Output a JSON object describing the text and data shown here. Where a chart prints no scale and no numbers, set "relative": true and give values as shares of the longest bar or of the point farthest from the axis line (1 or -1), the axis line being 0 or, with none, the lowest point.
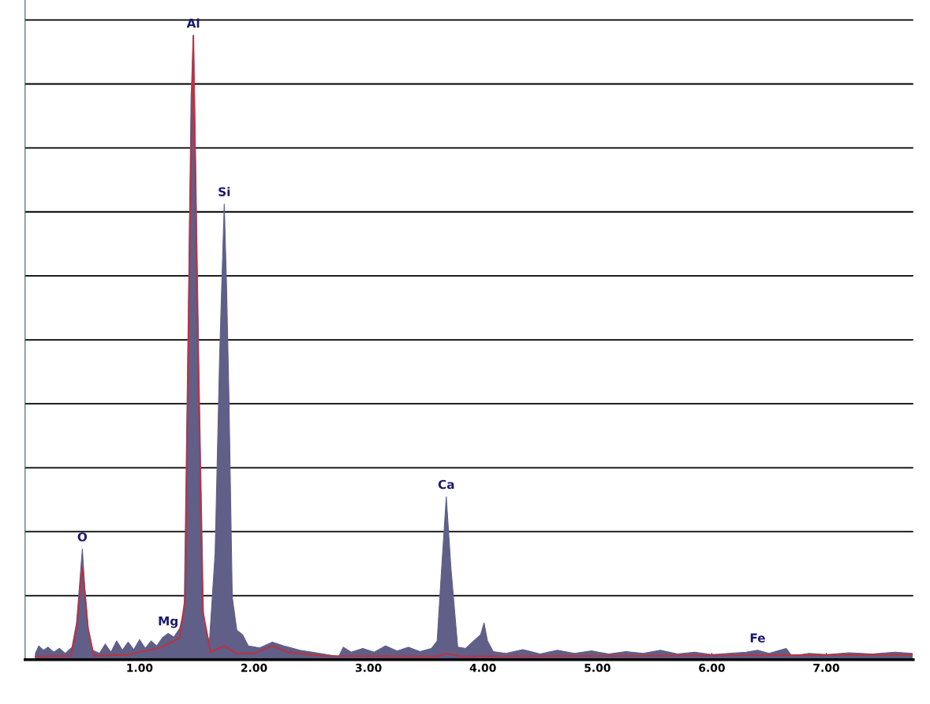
{
  "chart_data": {
    "type": "area",
    "relative": true,
    "grid": "y",
    "xlim": [
      0,
      7.76
    ],
    "xticks": [
      {
        "value": 1,
        "label": "1.00"
      },
      {
        "value": 2,
        "label": "2.00"
      },
      {
        "value": 3,
        "label": "3.00"
      },
      {
        "value": 4,
        "label": "4.00"
      },
      {
        "value": 5,
        "label": "5.00"
      },
      {
        "value": 6,
        "label": "6.00"
      },
      {
        "value": 7,
        "label": "7.00"
      }
    ],
    "series": [
      {
        "color": "#5f5f88",
        "x": [
          0.09,
          0.12,
          0.16,
          0.2,
          0.25,
          0.3,
          0.35,
          0.41,
          0.45,
          0.48,
          0.5,
          0.52,
          0.55,
          0.59,
          0.65,
          0.7,
          0.75,
          0.8,
          0.85,
          0.9,
          0.95,
          1.0,
          1.05,
          1.1,
          1.15,
          1.2,
          1.25,
          1.3,
          1.35,
          1.39,
          1.43,
          1.45,
          1.47,
          1.49,
          1.52,
          1.56,
          1.61,
          1.66,
          1.7,
          1.74,
          1.76,
          1.78,
          1.81,
          1.85,
          1.9,
          1.95,
          2.05,
          2.16,
          2.26,
          2.4,
          2.54,
          2.74,
          2.78,
          2.85,
          2.95,
          3.05,
          3.15,
          3.25,
          3.35,
          3.45,
          3.55,
          3.6,
          3.64,
          3.68,
          3.72,
          3.78,
          3.85,
          3.92,
          3.98,
          4.01,
          4.04,
          4.09,
          4.2,
          4.35,
          4.5,
          4.65,
          4.8,
          4.95,
          5.1,
          5.25,
          5.4,
          5.55,
          5.7,
          5.85,
          6.0,
          6.15,
          6.3,
          6.4,
          6.5,
          6.65,
          6.7,
          6.85,
          7.0,
          7.2,
          7.4,
          7.6,
          7.75
        ],
        "values": [
          0.01,
          0.022,
          0.015,
          0.02,
          0.012,
          0.018,
          0.01,
          0.02,
          0.06,
          0.13,
          0.177,
          0.12,
          0.05,
          0.015,
          0.01,
          0.025,
          0.012,
          0.03,
          0.015,
          0.028,
          0.016,
          0.032,
          0.018,
          0.03,
          0.022,
          0.035,
          0.042,
          0.036,
          0.05,
          0.08,
          0.61,
          0.9,
          1.0,
          0.8,
          0.45,
          0.06,
          0.028,
          0.17,
          0.49,
          0.73,
          0.6,
          0.43,
          0.1,
          0.047,
          0.04,
          0.022,
          0.019,
          0.028,
          0.022,
          0.015,
          0.011,
          0.005,
          0.02,
          0.012,
          0.018,
          0.012,
          0.022,
          0.014,
          0.02,
          0.013,
          0.018,
          0.03,
          0.148,
          0.261,
          0.148,
          0.02,
          0.018,
          0.03,
          0.04,
          0.059,
          0.03,
          0.013,
          0.01,
          0.016,
          0.009,
          0.015,
          0.01,
          0.014,
          0.009,
          0.013,
          0.01,
          0.015,
          0.009,
          0.012,
          0.008,
          0.01,
          0.012,
          0.015,
          0.01,
          0.018,
          0.006,
          0.01,
          0.008,
          0.011,
          0.009,
          0.012,
          0.01
        ]
      },
      {
        "type": "line",
        "color": "#c03040",
        "x": [
          0.09,
          0.4,
          0.45,
          0.5,
          0.55,
          0.6,
          0.9,
          1.2,
          1.35,
          1.4,
          1.44,
          1.47,
          1.5,
          1.55,
          1.62,
          1.74,
          1.85,
          2.0,
          2.16,
          2.3,
          2.6,
          3.6,
          3.68,
          3.8,
          5.0,
          7.75
        ],
        "values": [
          0.005,
          0.006,
          0.05,
          0.148,
          0.05,
          0.006,
          0.008,
          0.02,
          0.035,
          0.1,
          0.7,
          1.0,
          0.6,
          0.08,
          0.012,
          0.022,
          0.01,
          0.01,
          0.022,
          0.012,
          0.006,
          0.005,
          0.01,
          0.005,
          0.006,
          0.008
        ]
      }
    ],
    "annotations": [
      {
        "text": "O",
        "x": 0.5,
        "y": 0.177
      },
      {
        "text": "Mg",
        "x": 1.25,
        "y": 0.042
      },
      {
        "text": "Al",
        "x": 1.47,
        "y": 1.0
      },
      {
        "text": "Si",
        "x": 1.74,
        "y": 0.73
      },
      {
        "text": "Ca",
        "x": 3.68,
        "y": 0.261
      },
      {
        "text": "Fe",
        "x": 6.4,
        "y": 0.015
      }
    ]
  }
}
